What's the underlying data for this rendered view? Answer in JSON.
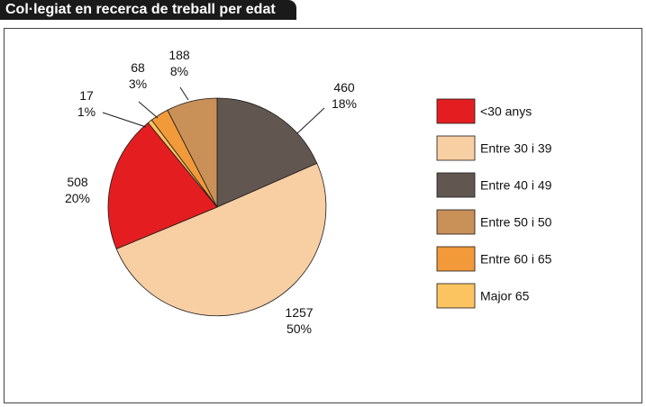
{
  "title": "Col·legiat en recerca de treball per edat",
  "chart_data": {
    "type": "pie",
    "title": "Col·legiat en recerca de treball per edat",
    "slices": [
      {
        "label": "<30 anys",
        "value": 508,
        "percent": "20%",
        "color": "#e41e20"
      },
      {
        "label": "Entre 30 i 39",
        "value": 1257,
        "percent": "50%",
        "color": "#f8cea3"
      },
      {
        "label": "Entre 40 i 49",
        "value": 460,
        "percent": "18%",
        "color": "#625750"
      },
      {
        "label": "Entre 50 i 50",
        "value": 188,
        "percent": "8%",
        "color": "#c99058"
      },
      {
        "label": "Entre 60 i 65",
        "value": 68,
        "percent": "3%",
        "color": "#f2993a"
      },
      {
        "label": "Major 65",
        "value": 17,
        "percent": "1%",
        "color": "#fcc460"
      }
    ],
    "legend_position": "right"
  }
}
